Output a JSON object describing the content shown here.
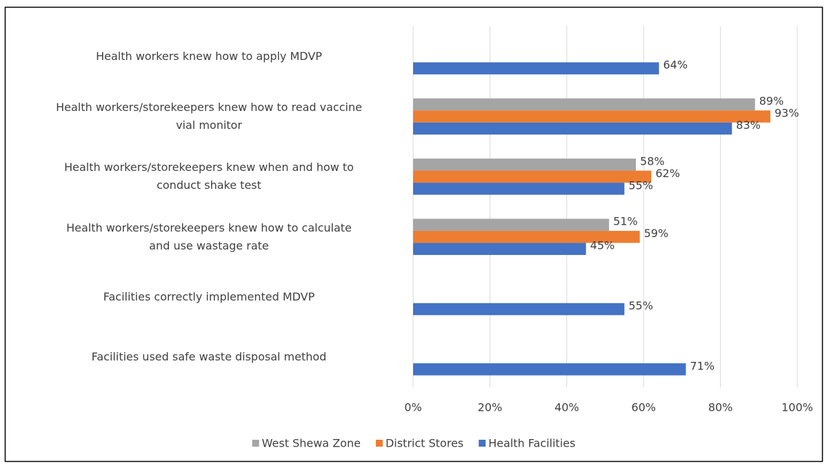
{
  "chart_data": {
    "type": "bar",
    "orientation": "horizontal",
    "categories": [
      "Health workers knew how to apply MDVP",
      "Health workers/storekeepers knew how to read vaccine\nvial monitor",
      "Health workers/storekeepers knew when and how to\nconduct shake test",
      "Health workers/storekeepers knew how to calculate\nand use wastage rate",
      "Facilities correctly implemented MDVP",
      "Facilities used safe waste disposal method"
    ],
    "series": [
      {
        "name": "West Shewa Zone",
        "color": "#a5a5a5",
        "values": [
          null,
          89,
          58,
          51,
          null,
          null
        ],
        "value_labels": [
          null,
          "89%",
          "58%",
          "51%",
          null,
          null
        ]
      },
      {
        "name": "District Stores",
        "color": "#ed7d31",
        "values": [
          null,
          93,
          62,
          59,
          null,
          null
        ],
        "value_labels": [
          null,
          "93%",
          "62%",
          "59%",
          null,
          null
        ]
      },
      {
        "name": "Health Facilities",
        "color": "#4472c4",
        "values": [
          64,
          83,
          55,
          45,
          55,
          71
        ],
        "value_labels": [
          "64%",
          "83%",
          "55%",
          "45%",
          "55%",
          "71%"
        ]
      }
    ],
    "xlim": [
      0,
      100
    ],
    "xticks": [
      {
        "value": 0,
        "label": "0%"
      },
      {
        "value": 20,
        "label": "20%"
      },
      {
        "value": 40,
        "label": "40%"
      },
      {
        "value": 60,
        "label": "60%"
      },
      {
        "value": 80,
        "label": "80%"
      },
      {
        "value": 100,
        "label": "100%"
      }
    ],
    "grid": true,
    "legend": "bottom"
  }
}
